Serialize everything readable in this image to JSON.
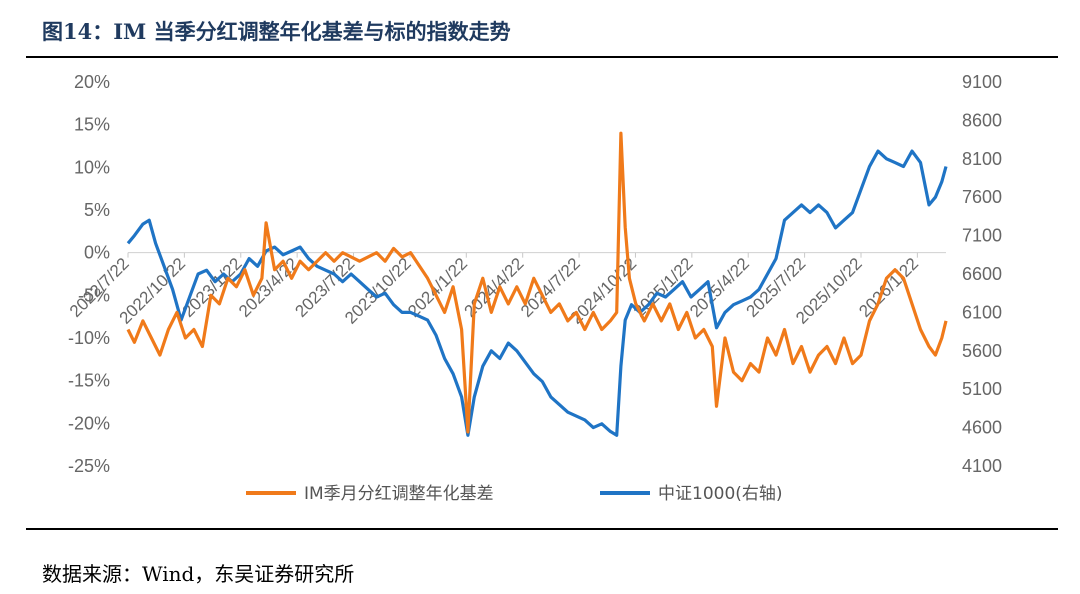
{
  "title": "图14：IM 当季分红调整年化基差与标的指数走势",
  "source": "数据来源：Wind，东吴证券研究所",
  "chart_data": {
    "type": "line",
    "x_ticks": [
      "2022/7/22",
      "2022/10/22",
      "2023/1/22",
      "2023/4/22",
      "2023/7/22",
      "2023/10/22",
      "2024/1/22",
      "2024/4/22",
      "2024/7/22",
      "2024/10/22",
      "2025/1/22",
      "2025/4/22",
      "2025/7/22",
      "2025/10/22",
      "2026/1/22"
    ],
    "y_left": {
      "ticks": [
        "20%",
        "15%",
        "10%",
        "5%",
        "0%",
        "-5%",
        "-10%",
        "-15%",
        "-20%",
        "-25%"
      ],
      "range": [
        -25,
        20
      ]
    },
    "y_right": {
      "ticks": [
        "9100",
        "8600",
        "8100",
        "7600",
        "7100",
        "6600",
        "6100",
        "5600",
        "5100",
        "4600",
        "4100"
      ],
      "range": [
        4100,
        9100
      ]
    },
    "grid": false,
    "legend_position": "bottom",
    "series": [
      {
        "name": "IM季月分红调整年化基差",
        "axis": "left",
        "color": "#f07a1a",
        "points": [
          [
            2022.55,
            -9
          ],
          [
            2022.58,
            -10.5
          ],
          [
            2022.62,
            -8
          ],
          [
            2022.66,
            -10
          ],
          [
            2022.7,
            -12
          ],
          [
            2022.74,
            -9
          ],
          [
            2022.78,
            -7
          ],
          [
            2022.82,
            -10
          ],
          [
            2022.86,
            -9
          ],
          [
            2022.9,
            -11
          ],
          [
            2022.94,
            -5
          ],
          [
            2022.98,
            -6
          ],
          [
            2023.02,
            -3
          ],
          [
            2023.06,
            -4
          ],
          [
            2023.1,
            -2
          ],
          [
            2023.14,
            -5
          ],
          [
            2023.18,
            -3
          ],
          [
            2023.2,
            3.5
          ],
          [
            2023.24,
            -2
          ],
          [
            2023.28,
            -1
          ],
          [
            2023.32,
            -3
          ],
          [
            2023.36,
            -1
          ],
          [
            2023.4,
            -2
          ],
          [
            2023.44,
            -1
          ],
          [
            2023.48,
            0
          ],
          [
            2023.52,
            -1
          ],
          [
            2023.56,
            0
          ],
          [
            2023.6,
            -0.5
          ],
          [
            2023.64,
            -1
          ],
          [
            2023.68,
            -0.5
          ],
          [
            2023.72,
            0
          ],
          [
            2023.76,
            -1
          ],
          [
            2023.8,
            0.5
          ],
          [
            2023.84,
            -0.5
          ],
          [
            2023.88,
            0
          ],
          [
            2023.92,
            -1.5
          ],
          [
            2023.96,
            -3
          ],
          [
            2024.0,
            -5
          ],
          [
            2024.04,
            -7
          ],
          [
            2024.08,
            -4
          ],
          [
            2024.12,
            -9
          ],
          [
            2024.15,
            -21
          ],
          [
            2024.18,
            -6
          ],
          [
            2024.22,
            -3
          ],
          [
            2024.26,
            -7
          ],
          [
            2024.3,
            -4
          ],
          [
            2024.34,
            -6
          ],
          [
            2024.38,
            -4
          ],
          [
            2024.42,
            -6
          ],
          [
            2024.46,
            -3
          ],
          [
            2024.5,
            -5
          ],
          [
            2024.54,
            -7
          ],
          [
            2024.58,
            -6
          ],
          [
            2024.62,
            -8
          ],
          [
            2024.66,
            -7
          ],
          [
            2024.7,
            -9
          ],
          [
            2024.74,
            -7
          ],
          [
            2024.78,
            -9
          ],
          [
            2024.82,
            -8
          ],
          [
            2024.85,
            -7
          ],
          [
            2024.87,
            14
          ],
          [
            2024.89,
            3
          ],
          [
            2024.91,
            -3
          ],
          [
            2024.94,
            -6
          ],
          [
            2024.98,
            -8
          ],
          [
            2025.02,
            -6
          ],
          [
            2025.06,
            -8
          ],
          [
            2025.1,
            -6
          ],
          [
            2025.14,
            -9
          ],
          [
            2025.18,
            -7
          ],
          [
            2025.22,
            -10
          ],
          [
            2025.26,
            -9
          ],
          [
            2025.3,
            -11
          ],
          [
            2025.32,
            -18
          ],
          [
            2025.36,
            -10
          ],
          [
            2025.4,
            -14
          ],
          [
            2025.44,
            -15
          ],
          [
            2025.48,
            -13
          ],
          [
            2025.52,
            -14
          ],
          [
            2025.56,
            -10
          ],
          [
            2025.6,
            -12
          ],
          [
            2025.64,
            -9
          ],
          [
            2025.68,
            -13
          ],
          [
            2025.72,
            -11
          ],
          [
            2025.76,
            -14
          ],
          [
            2025.8,
            -12
          ],
          [
            2025.84,
            -11
          ],
          [
            2025.88,
            -13
          ],
          [
            2025.92,
            -10
          ],
          [
            2025.96,
            -13
          ],
          [
            2026.0,
            -12
          ],
          [
            2026.04,
            -8
          ],
          [
            2026.08,
            -6
          ],
          [
            2026.12,
            -3
          ],
          [
            2026.16,
            -2
          ],
          [
            2026.2,
            -3
          ],
          [
            2026.24,
            -6
          ],
          [
            2026.28,
            -9
          ],
          [
            2026.32,
            -11
          ],
          [
            2026.35,
            -12
          ],
          [
            2026.38,
            -10
          ],
          [
            2026.4,
            -8
          ]
        ]
      },
      {
        "name": "中证1000(右轴)",
        "axis": "right",
        "color": "#1f74c5",
        "points": [
          [
            2022.55,
            7000
          ],
          [
            2022.58,
            7100
          ],
          [
            2022.62,
            7250
          ],
          [
            2022.65,
            7300
          ],
          [
            2022.68,
            7000
          ],
          [
            2022.72,
            6700
          ],
          [
            2022.76,
            6400
          ],
          [
            2022.8,
            6000
          ],
          [
            2022.84,
            6300
          ],
          [
            2022.88,
            6600
          ],
          [
            2022.92,
            6650
          ],
          [
            2022.96,
            6500
          ],
          [
            2023.0,
            6600
          ],
          [
            2023.04,
            6500
          ],
          [
            2023.08,
            6600
          ],
          [
            2023.12,
            6800
          ],
          [
            2023.16,
            6700
          ],
          [
            2023.2,
            6900
          ],
          [
            2023.24,
            6950
          ],
          [
            2023.28,
            6850
          ],
          [
            2023.32,
            6900
          ],
          [
            2023.36,
            6950
          ],
          [
            2023.4,
            6800
          ],
          [
            2023.44,
            6700
          ],
          [
            2023.48,
            6650
          ],
          [
            2023.52,
            6600
          ],
          [
            2023.56,
            6500
          ],
          [
            2023.6,
            6600
          ],
          [
            2023.64,
            6500
          ],
          [
            2023.68,
            6400
          ],
          [
            2023.72,
            6300
          ],
          [
            2023.76,
            6350
          ],
          [
            2023.8,
            6200
          ],
          [
            2023.84,
            6100
          ],
          [
            2023.88,
            6100
          ],
          [
            2023.92,
            6050
          ],
          [
            2023.96,
            6000
          ],
          [
            2024.0,
            5800
          ],
          [
            2024.04,
            5500
          ],
          [
            2024.08,
            5300
          ],
          [
            2024.12,
            5000
          ],
          [
            2024.15,
            4500
          ],
          [
            2024.18,
            5000
          ],
          [
            2024.22,
            5400
          ],
          [
            2024.26,
            5600
          ],
          [
            2024.3,
            5500
          ],
          [
            2024.34,
            5700
          ],
          [
            2024.38,
            5600
          ],
          [
            2024.42,
            5450
          ],
          [
            2024.46,
            5300
          ],
          [
            2024.5,
            5200
          ],
          [
            2024.54,
            5000
          ],
          [
            2024.58,
            4900
          ],
          [
            2024.62,
            4800
          ],
          [
            2024.66,
            4750
          ],
          [
            2024.7,
            4700
          ],
          [
            2024.74,
            4600
          ],
          [
            2024.78,
            4650
          ],
          [
            2024.82,
            4550
          ],
          [
            2024.85,
            4500
          ],
          [
            2024.87,
            5400
          ],
          [
            2024.89,
            6000
          ],
          [
            2024.92,
            6200
          ],
          [
            2024.96,
            6100
          ],
          [
            2025.0,
            6200
          ],
          [
            2025.04,
            6350
          ],
          [
            2025.08,
            6300
          ],
          [
            2025.12,
            6400
          ],
          [
            2025.16,
            6500
          ],
          [
            2025.2,
            6300
          ],
          [
            2025.24,
            6400
          ],
          [
            2025.28,
            6500
          ],
          [
            2025.32,
            5900
          ],
          [
            2025.36,
            6100
          ],
          [
            2025.4,
            6200
          ],
          [
            2025.44,
            6250
          ],
          [
            2025.48,
            6300
          ],
          [
            2025.52,
            6400
          ],
          [
            2025.56,
            6600
          ],
          [
            2025.6,
            6800
          ],
          [
            2025.64,
            7300
          ],
          [
            2025.68,
            7400
          ],
          [
            2025.72,
            7500
          ],
          [
            2025.76,
            7400
          ],
          [
            2025.8,
            7500
          ],
          [
            2025.84,
            7400
          ],
          [
            2025.88,
            7200
          ],
          [
            2025.92,
            7300
          ],
          [
            2025.96,
            7400
          ],
          [
            2026.0,
            7700
          ],
          [
            2026.04,
            8000
          ],
          [
            2026.08,
            8200
          ],
          [
            2026.12,
            8100
          ],
          [
            2026.16,
            8050
          ],
          [
            2026.2,
            8000
          ],
          [
            2026.24,
            8200
          ],
          [
            2026.28,
            8050
          ],
          [
            2026.32,
            7500
          ],
          [
            2026.35,
            7600
          ],
          [
            2026.38,
            7800
          ],
          [
            2026.4,
            8000
          ]
        ]
      }
    ]
  }
}
